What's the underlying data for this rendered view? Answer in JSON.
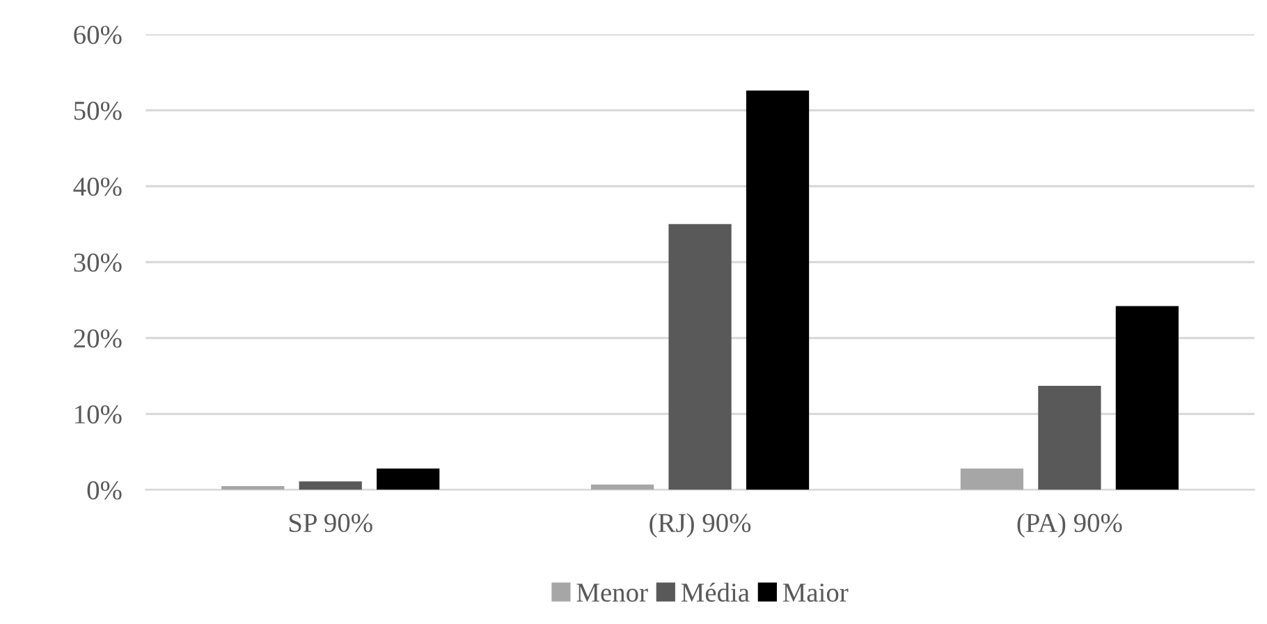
{
  "chart_data": {
    "type": "bar",
    "categories": [
      "SP 90%",
      "(RJ) 90%",
      "(PA) 90%"
    ],
    "series": [
      {
        "name": "Menor",
        "color": "#a6a6a6",
        "values": [
          0.5,
          0.7,
          2.8
        ]
      },
      {
        "name": "Média",
        "color": "#595959",
        "values": [
          1.1,
          35.0,
          13.7
        ]
      },
      {
        "name": "Maior",
        "color": "#000000",
        "values": [
          2.8,
          52.6,
          24.2
        ]
      }
    ],
    "ylim": [
      0,
      60
    ],
    "yticks": [
      {
        "value": 0,
        "label": "0%"
      },
      {
        "value": 10,
        "label": "10%"
      },
      {
        "value": 20,
        "label": "20%"
      },
      {
        "value": 30,
        "label": "30%"
      },
      {
        "value": 40,
        "label": "40%"
      },
      {
        "value": 50,
        "label": "50%"
      },
      {
        "value": 60,
        "label": "60%"
      }
    ],
    "grid": "y",
    "legend": "bottom"
  }
}
